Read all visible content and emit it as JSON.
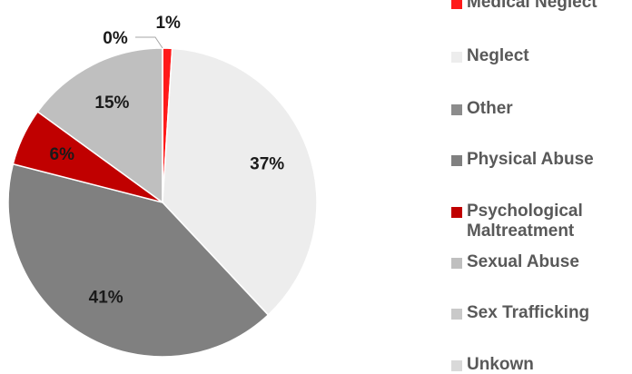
{
  "chart_data": {
    "type": "pie",
    "categories": [
      "Medical Neglect",
      "Neglect",
      "Other",
      "Physical Abuse",
      "Psychological Maltreatment",
      "Sexual Abuse",
      "Sex Trafficking",
      "Unkown"
    ],
    "values": [
      1,
      37,
      0,
      41,
      6,
      15,
      0,
      0
    ],
    "value_labels": [
      "1%",
      "37%",
      null,
      "41%",
      "6%",
      "15%",
      "0%",
      null
    ],
    "colors": [
      "#ff1a1a",
      "#ededed",
      "#8c8c8c",
      "#808080",
      "#c00000",
      "#bfbfbf",
      "#c9c9c9",
      "#d9d9d9"
    ],
    "legend": "right"
  }
}
